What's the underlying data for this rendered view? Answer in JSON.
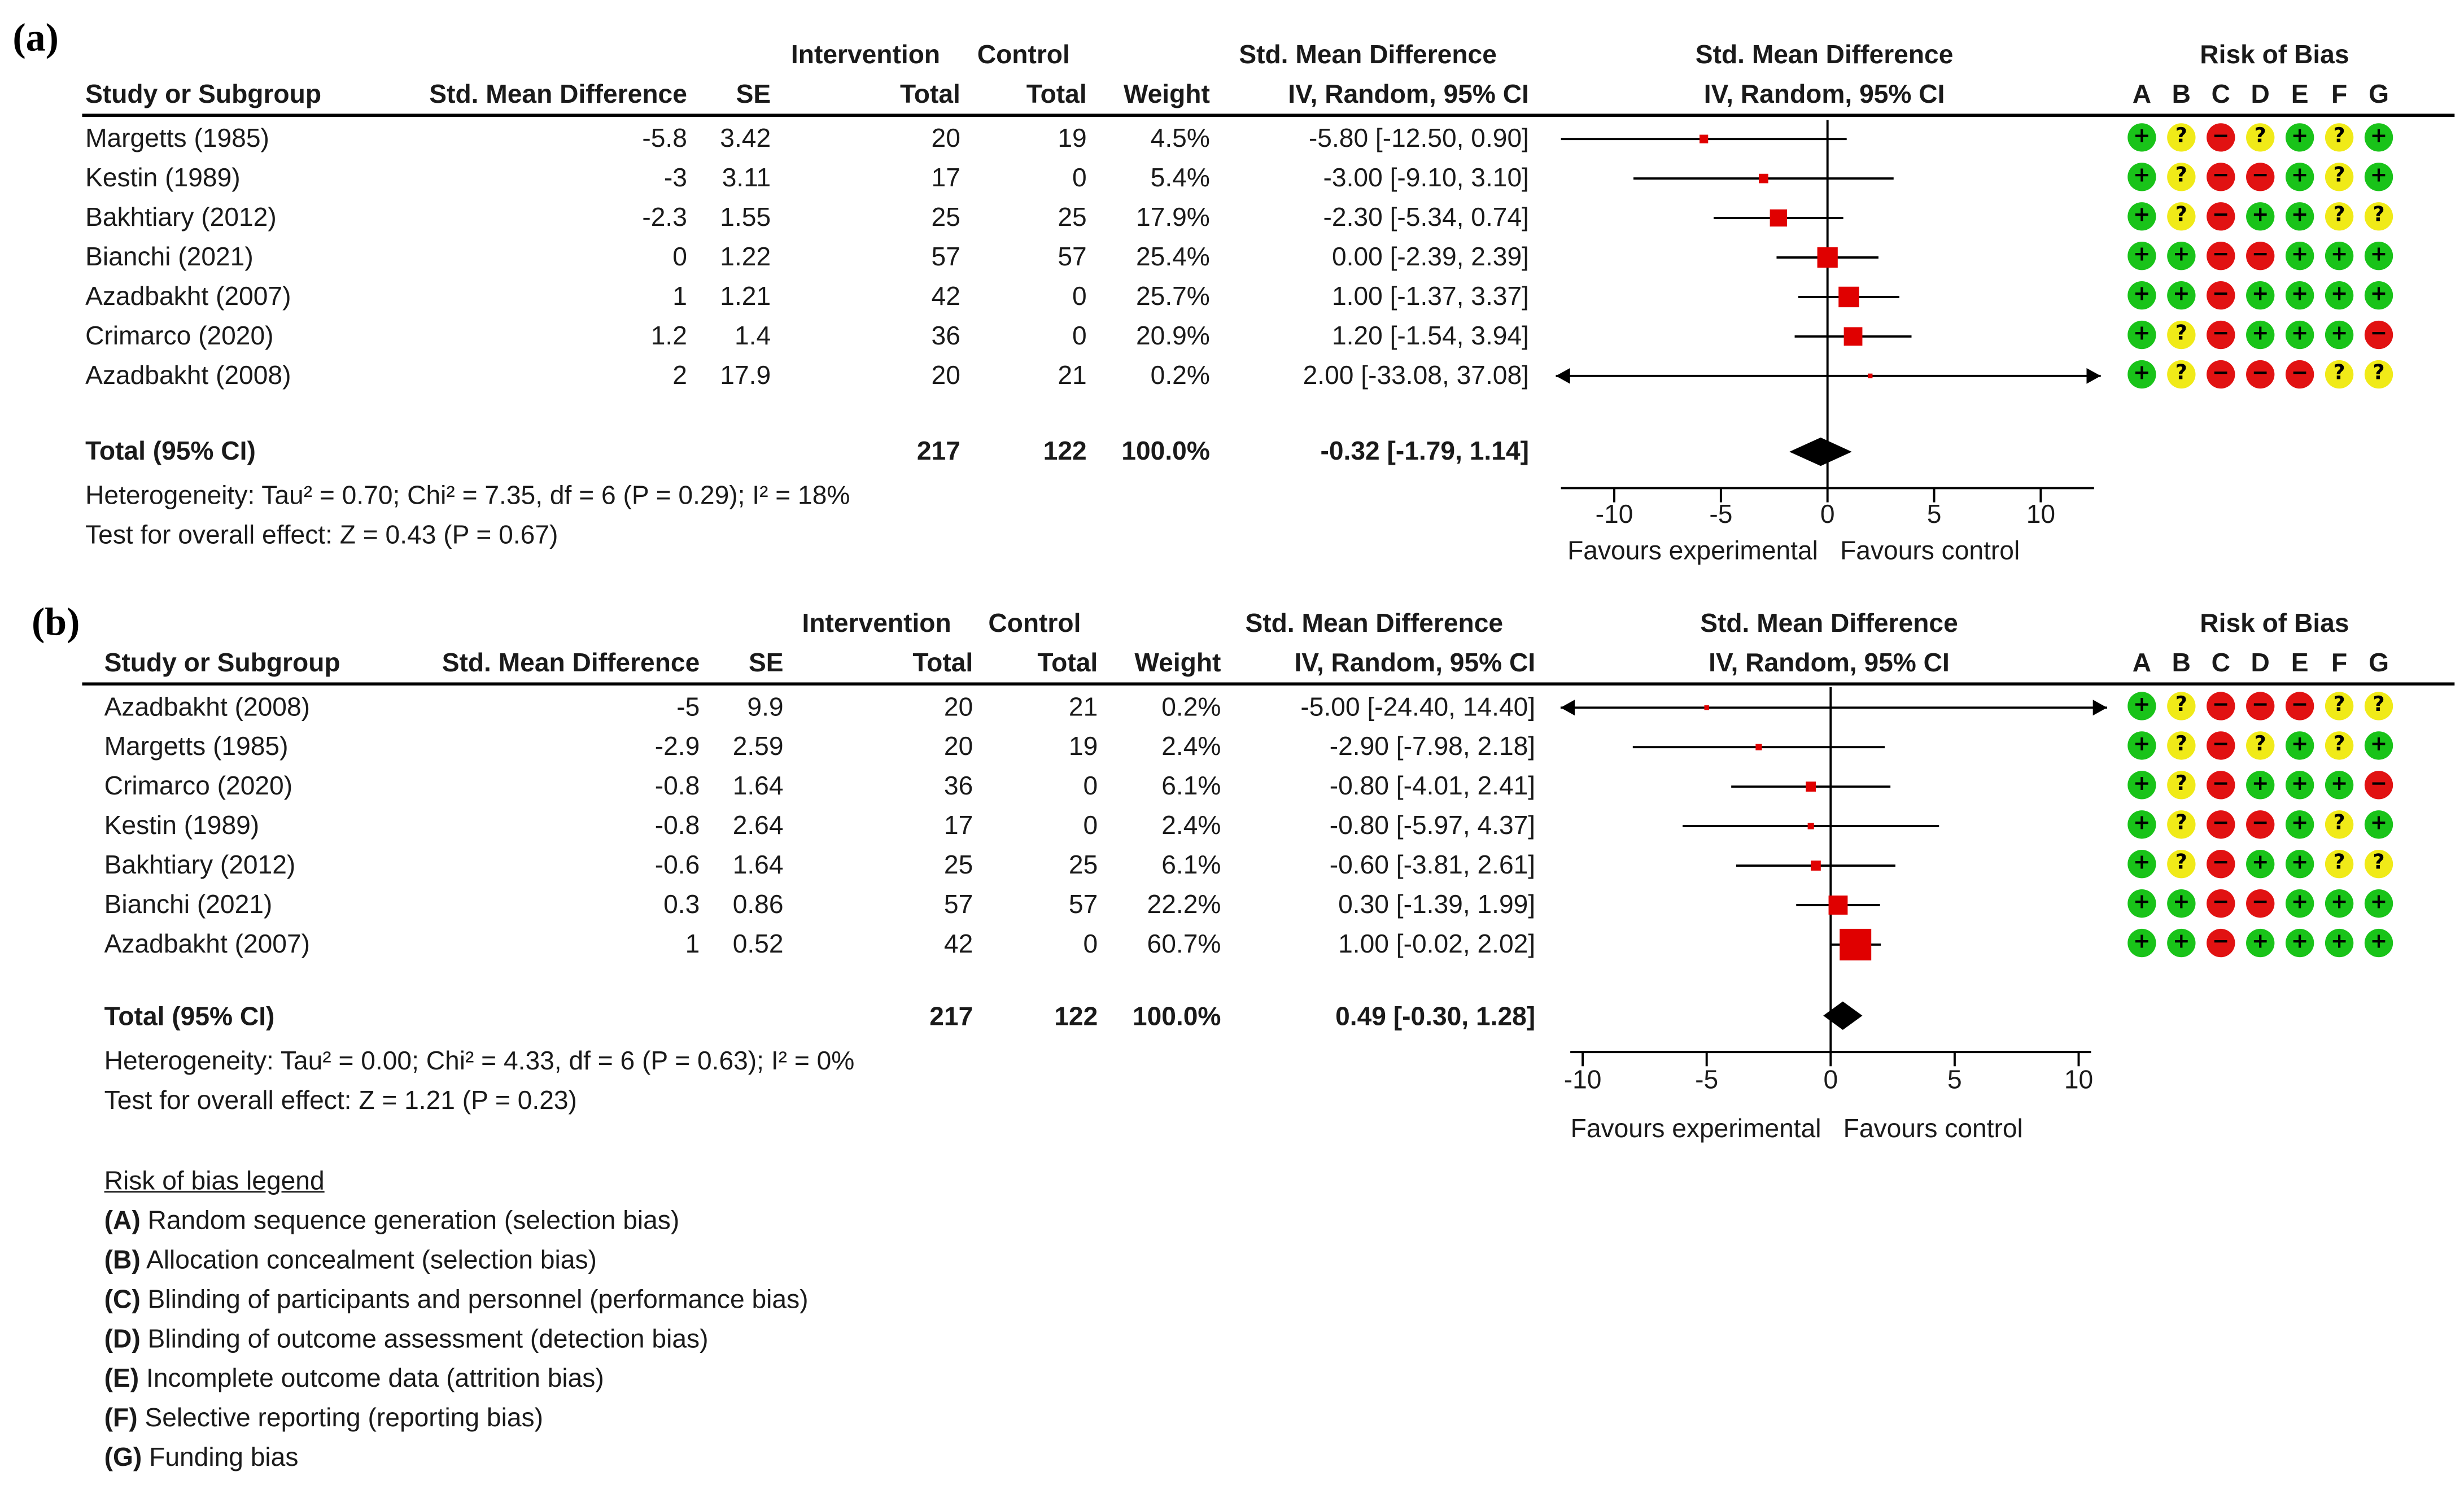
{
  "panels": [
    {
      "label": "(a)",
      "headers": {
        "study": "Study or Subgroup",
        "smd": "Std. Mean Difference",
        "se": "SE",
        "intervention": "Intervention",
        "intervention_total": "Total",
        "control": "Control",
        "control_total": "Total",
        "weight": "Weight",
        "ci_title": "Std. Mean Difference",
        "ci_sub": "IV, Random, 95% CI",
        "plot_title": "Std. Mean Difference",
        "plot_sub": "IV, Random, 95% CI",
        "rob_title": "Risk of Bias",
        "rob_cols": [
          "A",
          "B",
          "C",
          "D",
          "E",
          "F",
          "G"
        ]
      },
      "rows": [
        {
          "study": "Margetts (1985)",
          "smd": "-5.8",
          "se": "3.42",
          "int_total": "20",
          "ctl_total": "19",
          "weight": "4.5%",
          "ci": "-5.80 [-12.50, 0.90]",
          "est": -5.8,
          "lo": -12.5,
          "hi": 0.9,
          "w": 4.5,
          "rob": [
            "+",
            "?",
            "-",
            "?",
            "+",
            "?",
            "+"
          ]
        },
        {
          "study": "Kestin (1989)",
          "smd": "-3",
          "se": "3.11",
          "int_total": "17",
          "ctl_total": "0",
          "weight": "5.4%",
          "ci": "-3.00 [-9.10, 3.10]",
          "est": -3.0,
          "lo": -9.1,
          "hi": 3.1,
          "w": 5.4,
          "rob": [
            "+",
            "?",
            "-",
            "-",
            "+",
            "?",
            "+"
          ]
        },
        {
          "study": "Bakhtiary (2012)",
          "smd": "-2.3",
          "se": "1.55",
          "int_total": "25",
          "ctl_total": "25",
          "weight": "17.9%",
          "ci": "-2.30 [-5.34, 0.74]",
          "est": -2.3,
          "lo": -5.34,
          "hi": 0.74,
          "w": 17.9,
          "rob": [
            "+",
            "?",
            "-",
            "+",
            "+",
            "?",
            "?"
          ]
        },
        {
          "study": "Bianchi (2021)",
          "smd": "0",
          "se": "1.22",
          "int_total": "57",
          "ctl_total": "57",
          "weight": "25.4%",
          "ci": "0.00 [-2.39, 2.39]",
          "est": 0.0,
          "lo": -2.39,
          "hi": 2.39,
          "w": 25.4,
          "rob": [
            "+",
            "+",
            "-",
            "-",
            "+",
            "+",
            "+"
          ]
        },
        {
          "study": "Azadbakht (2007)",
          "smd": "1",
          "se": "1.21",
          "int_total": "42",
          "ctl_total": "0",
          "weight": "25.7%",
          "ci": "1.00 [-1.37, 3.37]",
          "est": 1.0,
          "lo": -1.37,
          "hi": 3.37,
          "w": 25.7,
          "rob": [
            "+",
            "+",
            "-",
            "+",
            "+",
            "+",
            "+"
          ]
        },
        {
          "study": "Crimarco (2020)",
          "smd": "1.2",
          "se": "1.4",
          "int_total": "36",
          "ctl_total": "0",
          "weight": "20.9%",
          "ci": "1.20 [-1.54, 3.94]",
          "est": 1.2,
          "lo": -1.54,
          "hi": 3.94,
          "w": 20.9,
          "rob": [
            "+",
            "?",
            "-",
            "+",
            "+",
            "+",
            "-"
          ]
        },
        {
          "study": "Azadbakht (2008)",
          "smd": "2",
          "se": "17.9",
          "int_total": "20",
          "ctl_total": "21",
          "weight": "0.2%",
          "ci": "2.00 [-33.08, 37.08]",
          "est": 2.0,
          "lo": -33.08,
          "hi": 37.08,
          "w": 0.2,
          "rob": [
            "+",
            "?",
            "-",
            "-",
            "-",
            "?",
            "?"
          ]
        }
      ],
      "total": {
        "label": "Total (95% CI)",
        "int_total": "217",
        "ctl_total": "122",
        "weight": "100.0%",
        "ci": "-0.32 [-1.79, 1.14]",
        "est": -0.32,
        "lo": -1.79,
        "hi": 1.14
      },
      "heterogeneity": "Heterogeneity: Tau² = 0.70; Chi² = 7.35, df = 6 (P = 0.29); I² = 18%",
      "overall_effect": "Test for overall effect: Z = 0.43 (P = 0.67)",
      "axis": {
        "ticks": [
          "-10",
          "-5",
          "0",
          "5",
          "10"
        ],
        "range": [
          -12.5,
          12.5
        ],
        "left_label": "Favours experimental",
        "right_label": "Favours control"
      }
    },
    {
      "label": "(b)",
      "headers": {
        "study": "Study or Subgroup",
        "smd": "Std. Mean Difference",
        "se": "SE",
        "intervention": "Intervention",
        "intervention_total": "Total",
        "control": "Control",
        "control_total": "Total",
        "weight": "Weight",
        "ci_title": "Std. Mean Difference",
        "ci_sub": "IV, Random, 95% CI",
        "plot_title": "Std. Mean Difference",
        "plot_sub": "IV, Random, 95% CI",
        "rob_title": "Risk of Bias",
        "rob_cols": [
          "A",
          "B",
          "C",
          "D",
          "E",
          "F",
          "G"
        ]
      },
      "rows": [
        {
          "study": "Azadbakht (2008)",
          "smd": "-5",
          "se": "9.9",
          "int_total": "20",
          "ctl_total": "21",
          "weight": "0.2%",
          "ci": "-5.00 [-24.40, 14.40]",
          "est": -5.0,
          "lo": -24.4,
          "hi": 14.4,
          "w": 0.2,
          "rob": [
            "+",
            "?",
            "-",
            "-",
            "-",
            "?",
            "?"
          ]
        },
        {
          "study": "Margetts (1985)",
          "smd": "-2.9",
          "se": "2.59",
          "int_total": "20",
          "ctl_total": "19",
          "weight": "2.4%",
          "ci": "-2.90 [-7.98, 2.18]",
          "est": -2.9,
          "lo": -7.98,
          "hi": 2.18,
          "w": 2.4,
          "rob": [
            "+",
            "?",
            "-",
            "?",
            "+",
            "?",
            "+"
          ]
        },
        {
          "study": "Crimarco (2020)",
          "smd": "-0.8",
          "se": "1.64",
          "int_total": "36",
          "ctl_total": "0",
          "weight": "6.1%",
          "ci": "-0.80 [-4.01, 2.41]",
          "est": -0.8,
          "lo": -4.01,
          "hi": 2.41,
          "w": 6.1,
          "rob": [
            "+",
            "?",
            "-",
            "+",
            "+",
            "+",
            "-"
          ]
        },
        {
          "study": "Kestin (1989)",
          "smd": "-0.8",
          "se": "2.64",
          "int_total": "17",
          "ctl_total": "0",
          "weight": "2.4%",
          "ci": "-0.80 [-5.97, 4.37]",
          "est": -0.8,
          "lo": -5.97,
          "hi": 4.37,
          "w": 2.4,
          "rob": [
            "+",
            "?",
            "-",
            "-",
            "+",
            "?",
            "+"
          ]
        },
        {
          "study": "Bakhtiary (2012)",
          "smd": "-0.6",
          "se": "1.64",
          "int_total": "25",
          "ctl_total": "25",
          "weight": "6.1%",
          "ci": "-0.60 [-3.81, 2.61]",
          "est": -0.6,
          "lo": -3.81,
          "hi": 2.61,
          "w": 6.1,
          "rob": [
            "+",
            "?",
            "-",
            "+",
            "+",
            "?",
            "?"
          ]
        },
        {
          "study": "Bianchi (2021)",
          "smd": "0.3",
          "se": "0.86",
          "int_total": "57",
          "ctl_total": "57",
          "weight": "22.2%",
          "ci": "0.30 [-1.39, 1.99]",
          "est": 0.3,
          "lo": -1.39,
          "hi": 1.99,
          "w": 22.2,
          "rob": [
            "+",
            "+",
            "-",
            "-",
            "+",
            "+",
            "+"
          ]
        },
        {
          "study": "Azadbakht (2007)",
          "smd": "1",
          "se": "0.52",
          "int_total": "42",
          "ctl_total": "0",
          "weight": "60.7%",
          "ci": "1.00 [-0.02, 2.02]",
          "est": 1.0,
          "lo": -0.02,
          "hi": 2.02,
          "w": 60.7,
          "rob": [
            "+",
            "+",
            "-",
            "+",
            "+",
            "+",
            "+"
          ]
        }
      ],
      "total": {
        "label": "Total (95% CI)",
        "int_total": "217",
        "ctl_total": "122",
        "weight": "100.0%",
        "ci": "0.49 [-0.30, 1.28]",
        "est": 0.49,
        "lo": -0.3,
        "hi": 1.28
      },
      "heterogeneity": "Heterogeneity: Tau² = 0.00; Chi² = 4.33, df = 6 (P = 0.63); I² = 0%",
      "overall_effect": "Test for overall effect: Z = 1.21 (P = 0.23)",
      "axis": {
        "ticks": [
          "-10",
          "-5",
          "0",
          "5",
          "10"
        ],
        "range": [
          -10.5,
          10.5
        ],
        "left_label": "Favours experimental",
        "right_label": "Favours control"
      }
    }
  ],
  "legend": {
    "title": "Risk of bias legend",
    "items": [
      {
        "key": "(A)",
        "text": " Random sequence generation (selection bias)"
      },
      {
        "key": "(B)",
        "text": " Allocation concealment (selection bias)"
      },
      {
        "key": "(C)",
        "text": " Blinding of participants and personnel (performance bias)"
      },
      {
        "key": "(D)",
        "text": " Blinding of outcome assessment (detection bias)"
      },
      {
        "key": "(E)",
        "text": " Incomplete outcome data (attrition bias)"
      },
      {
        "key": "(F)",
        "text": " Selective reporting (reporting bias)"
      },
      {
        "key": "(G)",
        "text": " Funding bias"
      }
    ]
  },
  "colors": {
    "estimate": "#e00000",
    "diamond": "#000000",
    "low_risk": "#19c319",
    "unclear_risk": "#f0ea18",
    "high_risk": "#e11212"
  },
  "chart_data": [
    {
      "type": "forest",
      "x": [
        "Margetts (1985)",
        "Kestin (1989)",
        "Bakhtiary (2012)",
        "Bianchi (2021)",
        "Azadbakht (2007)",
        "Crimarco (2020)",
        "Azadbakht (2008)"
      ],
      "values": [
        -5.8,
        -3.0,
        -2.3,
        0.0,
        1.0,
        1.2,
        2.0
      ],
      "ci_low": [
        -12.5,
        -9.1,
        -5.34,
        -2.39,
        -1.37,
        -1.54,
        -33.08
      ],
      "ci_high": [
        0.9,
        3.1,
        0.74,
        2.39,
        3.37,
        3.94,
        37.08
      ],
      "weights": [
        4.5,
        5.4,
        17.9,
        25.4,
        25.7,
        20.9,
        0.2
      ],
      "pooled": {
        "value": -0.32,
        "ci": [
          -1.79,
          1.14
        ]
      },
      "xlim": [
        -10,
        10
      ]
    },
    {
      "type": "forest",
      "x": [
        "Azadbakht (2008)",
        "Margetts (1985)",
        "Crimarco (2020)",
        "Kestin (1989)",
        "Bakhtiary (2012)",
        "Bianchi (2021)",
        "Azadbakht (2007)"
      ],
      "values": [
        -5.0,
        -2.9,
        -0.8,
        -0.8,
        -0.6,
        0.3,
        1.0
      ],
      "ci_low": [
        -24.4,
        -7.98,
        -4.01,
        -5.97,
        -3.81,
        -1.39,
        -0.02
      ],
      "ci_high": [
        14.4,
        2.18,
        2.41,
        4.37,
        2.61,
        1.99,
        2.02
      ],
      "weights": [
        0.2,
        2.4,
        6.1,
        2.4,
        6.1,
        22.2,
        60.7
      ],
      "pooled": {
        "value": 0.49,
        "ci": [
          -0.3,
          1.28
        ]
      },
      "xlim": [
        -10,
        10
      ]
    }
  ]
}
